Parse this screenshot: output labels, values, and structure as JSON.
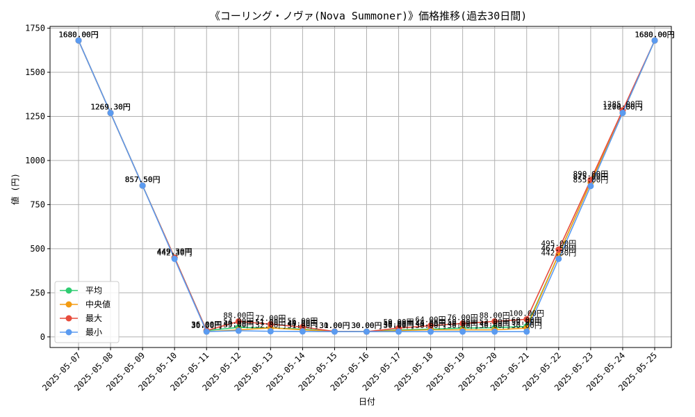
{
  "chart_data": {
    "type": "line",
    "title": "《コーリング・ノヴァ(Nova Summoner)》価格推移(過去30日間)",
    "xlabel": "日付",
    "ylabel": "値 (円)",
    "ylim": [
      -60,
      1760
    ],
    "yticks": [
      0,
      250,
      500,
      750,
      1000,
      1250,
      1500,
      1750
    ],
    "grid": true,
    "legend_position": "lower-left",
    "label_suffix": "円",
    "categories": [
      "2025-05-07",
      "2025-05-08",
      "2025-05-09",
      "2025-05-10",
      "2025-05-11",
      "2025-05-12",
      "2025-05-13",
      "2025-05-14",
      "2025-05-15",
      "2025-05-16",
      "2025-05-17",
      "2025-05-18",
      "2025-05-19",
      "2025-05-20",
      "2025-05-21",
      "2025-05-22",
      "2025-05-23",
      "2025-05-24",
      "2025-05-25"
    ],
    "series": [
      {
        "name": "平均",
        "color": "#2ecc71",
        "values": [
          1680.0,
          1269.3,
          857.5,
          449.3,
          36.0,
          54.0,
          51.0,
          44.0,
          31.0,
          30.0,
          40.0,
          44.0,
          50.0,
          52.0,
          60.0,
          467.5,
          875.0,
          1270.0,
          1680.0
        ]
      },
      {
        "name": "中央値",
        "color": "#f39c12",
        "values": [
          1680.0,
          1269.3,
          857.5,
          449.3,
          30.0,
          40.0,
          51.0,
          40.0,
          31.0,
          30.0,
          36.0,
          40.0,
          40.0,
          40.0,
          50.0,
          467.5,
          875.0,
          1270.0,
          1680.0
        ]
      },
      {
        "name": "最大",
        "color": "#e74c3c",
        "values": [
          1680.0,
          1269.3,
          857.5,
          449.3,
          36.0,
          88.0,
          72.0,
          56.0,
          31.0,
          30.0,
          50.0,
          64.0,
          76.0,
          88.0,
          100.0,
          495.0,
          890.0,
          1285.0,
          1680.0
        ]
      },
      {
        "name": "最小",
        "color": "#5b9bf0",
        "values": [
          1680.0,
          1269.3,
          857.5,
          442.3,
          30.0,
          35.0,
          32.0,
          31.0,
          30.0,
          30.0,
          30.0,
          30.0,
          30.0,
          30.0,
          30.0,
          442.3,
          855.0,
          1269.3,
          1680.0
        ]
      }
    ]
  }
}
